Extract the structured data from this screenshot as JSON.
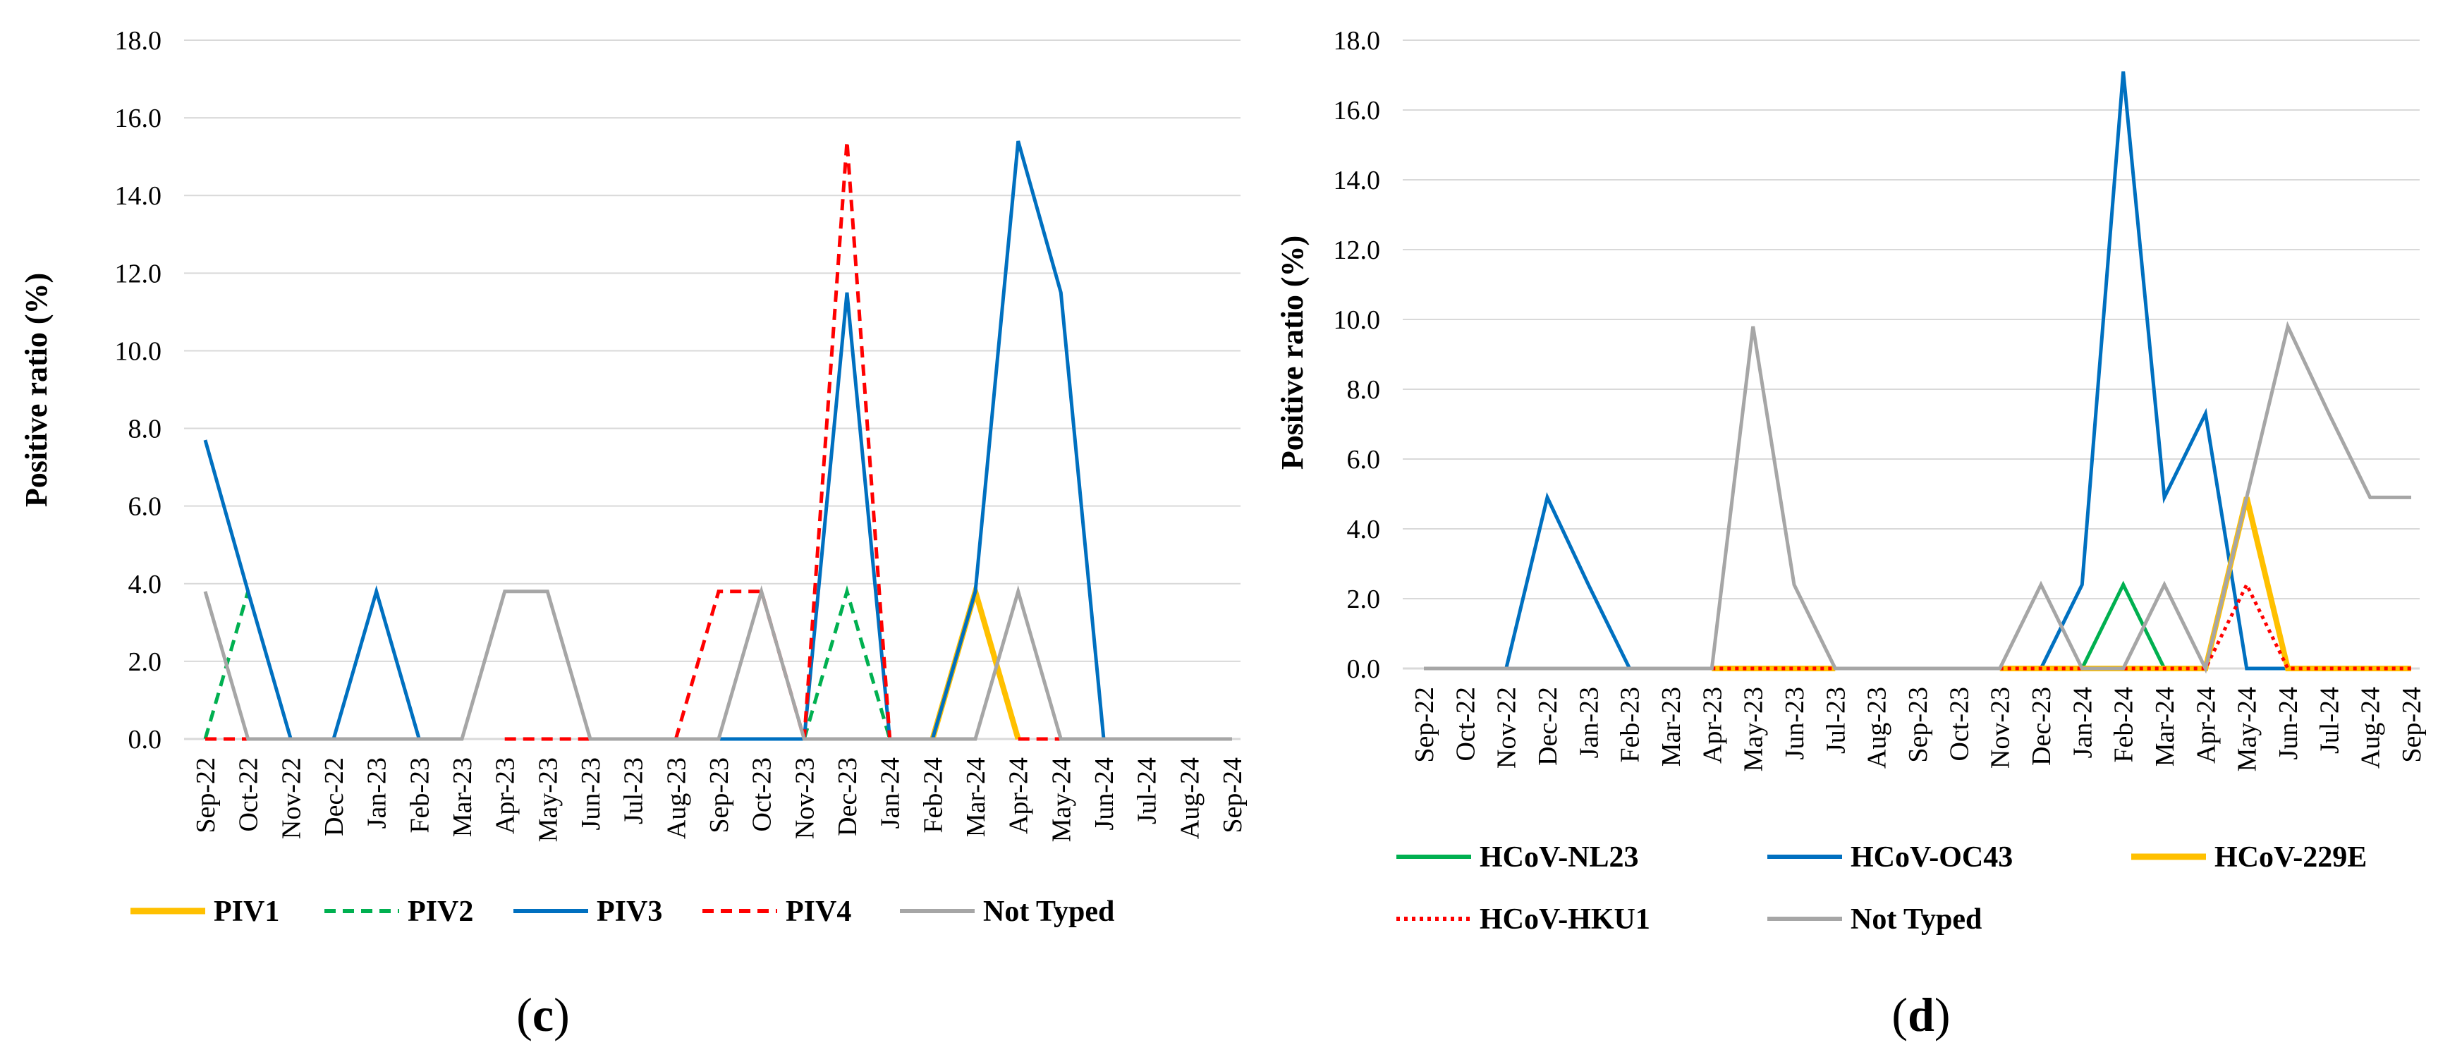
{
  "chart_data": [
    {
      "type": "line",
      "panel_label": "c",
      "ylabel": "Positive ratio (%)",
      "xlabel": "",
      "ylim": [
        0,
        18
      ],
      "yticks": [
        "0.0",
        "2.0",
        "4.0",
        "6.0",
        "8.0",
        "10.0",
        "12.0",
        "14.0",
        "16.0",
        "18.0"
      ],
      "grid": true,
      "legend_position": "bottom",
      "categories": [
        "Sep-22",
        "Oct-22",
        "Nov-22",
        "Dec-22",
        "Jan-23",
        "Feb-23",
        "Mar-23",
        "Apr-23",
        "May-23",
        "Jun-23",
        "Jul-23",
        "Aug-23",
        "Sep-23",
        "Oct-23",
        "Nov-23",
        "Dec-23",
        "Jan-24",
        "Feb-24",
        "Mar-24",
        "Apr-24",
        "May-24",
        "Jun-24",
        "Jul-24",
        "Aug-24",
        "Sep-24"
      ],
      "series": [
        {
          "name": "PIV1",
          "color": "#FFC000",
          "style": "solid",
          "width": 8,
          "values": [
            null,
            null,
            null,
            null,
            null,
            null,
            null,
            null,
            null,
            null,
            null,
            null,
            null,
            null,
            null,
            null,
            null,
            0,
            3.8,
            0,
            null,
            null,
            null,
            null,
            0
          ]
        },
        {
          "name": "PIV2",
          "color": "#00B050",
          "style": "dashed",
          "width": 5,
          "values": [
            0,
            3.8,
            null,
            null,
            null,
            null,
            null,
            null,
            null,
            null,
            null,
            null,
            null,
            null,
            0,
            3.8,
            0,
            null,
            null,
            null,
            null,
            null,
            null,
            null,
            null
          ]
        },
        {
          "name": "PIV3",
          "color": "#0070C0",
          "style": "solid",
          "width": 5,
          "values": [
            7.7,
            3.8,
            0,
            0,
            3.8,
            0,
            null,
            null,
            null,
            null,
            null,
            null,
            0,
            0,
            0,
            11.5,
            0,
            0,
            3.8,
            15.4,
            11.5,
            0,
            0,
            0,
            0
          ]
        },
        {
          "name": "PIV4",
          "color": "#FF0000",
          "style": "dashed",
          "width": 5,
          "values": [
            0,
            0,
            null,
            null,
            null,
            null,
            null,
            0,
            0,
            0,
            null,
            0,
            3.8,
            3.8,
            0,
            15.4,
            0,
            null,
            null,
            0,
            0,
            null,
            null,
            null,
            null
          ]
        },
        {
          "name": "Not Typed",
          "color": "#A6A6A6",
          "style": "solid",
          "width": 5,
          "values": [
            3.8,
            0,
            0,
            0,
            0,
            0,
            0,
            3.8,
            3.8,
            0,
            0,
            0,
            0,
            3.8,
            0,
            0,
            0,
            0,
            0,
            3.8,
            0,
            0,
            0,
            0,
            0
          ]
        }
      ]
    },
    {
      "type": "line",
      "panel_label": "d",
      "ylabel": "Positive ratio (%)",
      "xlabel": "",
      "ylim": [
        0,
        18
      ],
      "yticks": [
        "0.0",
        "2.0",
        "4.0",
        "6.0",
        "8.0",
        "10.0",
        "12.0",
        "14.0",
        "16.0",
        "18.0"
      ],
      "grid": true,
      "legend_position": "bottom",
      "categories": [
        "Sep-22",
        "Oct-22",
        "Nov-22",
        "Dec-22",
        "Jan-23",
        "Feb-23",
        "Mar-23",
        "Apr-23",
        "May-23",
        "Jun-23",
        "Jul-23",
        "Aug-23",
        "Sep-23",
        "Oct-23",
        "Nov-23",
        "Dec-23",
        "Jan-24",
        "Feb-24",
        "Mar-24",
        "Apr-24",
        "May-24",
        "Jun-24",
        "Jul-24",
        "Aug-24",
        "Sep-24"
      ],
      "series": [
        {
          "name": "HCoV-NL23",
          "color": "#00B050",
          "style": "solid",
          "width": 5,
          "values": [
            null,
            null,
            null,
            null,
            null,
            null,
            null,
            null,
            null,
            null,
            null,
            null,
            null,
            null,
            null,
            null,
            0,
            2.4,
            0,
            0,
            null,
            null,
            null,
            null,
            null
          ]
        },
        {
          "name": "HCoV-OC43",
          "color": "#0070C0",
          "style": "solid",
          "width": 5,
          "values": [
            0,
            0,
            0,
            4.9,
            2.4,
            0,
            0,
            0,
            null,
            null,
            null,
            null,
            null,
            null,
            null,
            0,
            2.4,
            17.1,
            4.9,
            7.3,
            0,
            0,
            null,
            null,
            null
          ]
        },
        {
          "name": "HCoV-229E",
          "color": "#FFC000",
          "style": "solid",
          "width": 8,
          "values": [
            null,
            null,
            null,
            null,
            null,
            null,
            null,
            0,
            0,
            0,
            0,
            null,
            null,
            null,
            0,
            0,
            0,
            0,
            0,
            0,
            4.9,
            0,
            0,
            0,
            0
          ]
        },
        {
          "name": "HCoV-HKU1",
          "color": "#FF0000",
          "style": "dotted",
          "width": 5,
          "values": [
            null,
            null,
            null,
            null,
            null,
            null,
            null,
            0,
            0,
            0,
            0,
            null,
            null,
            null,
            0,
            0,
            0,
            0,
            0,
            0,
            2.4,
            0,
            0,
            0,
            0
          ]
        },
        {
          "name": "Not Typed",
          "color": "#A6A6A6",
          "style": "solid",
          "width": 5,
          "values": [
            0,
            0,
            0,
            0,
            0,
            0,
            0,
            0,
            9.8,
            2.4,
            0,
            0,
            0,
            0,
            0,
            2.4,
            0,
            0,
            2.4,
            0,
            4.9,
            9.8,
            7.3,
            4.9,
            4.9
          ]
        }
      ]
    }
  ]
}
